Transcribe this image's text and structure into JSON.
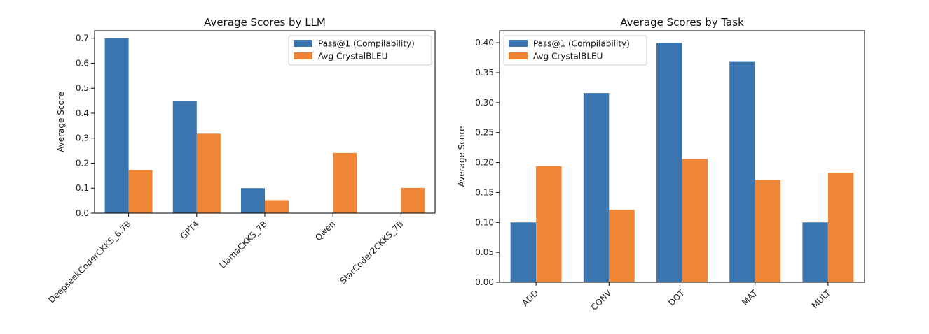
{
  "chart_data": [
    {
      "type": "bar",
      "title": "Average Scores by LLM",
      "xlabel": "",
      "ylabel": "Average Score",
      "categories": [
        "DeepseekCoderCKKS_6.7B",
        "GPT4",
        "LlamaCKKS_7B",
        "Qwen",
        "StarCoder2CKKS_7B"
      ],
      "series": [
        {
          "name": "Pass@1 (Compilability)",
          "color": "#3a75af",
          "values": [
            0.7,
            0.45,
            0.1,
            0.0,
            0.0
          ]
        },
        {
          "name": "Avg CrystalBLEU",
          "color": "#ef8636",
          "values": [
            0.172,
            0.318,
            0.052,
            0.241,
            0.101
          ]
        }
      ],
      "ylim": [
        0,
        0.73
      ],
      "yticks": [
        "0.0",
        "0.1",
        "0.2",
        "0.3",
        "0.4",
        "0.5",
        "0.6",
        "0.7"
      ],
      "legend": "upper right",
      "grid": false
    },
    {
      "type": "bar",
      "title": "Average Scores by Task",
      "xlabel": "",
      "ylabel": "Average Score",
      "categories": [
        "ADD",
        "CONV",
        "DOT",
        "MAT",
        "MULT"
      ],
      "series": [
        {
          "name": "Pass@1 (Compilability)",
          "color": "#3a75af",
          "values": [
            0.1,
            0.316,
            0.4,
            0.368,
            0.1
          ]
        },
        {
          "name": "Avg CrystalBLEU",
          "color": "#ef8636",
          "values": [
            0.194,
            0.121,
            0.206,
            0.171,
            0.183
          ]
        }
      ],
      "ylim": [
        0,
        0.42
      ],
      "yticks": [
        "0.00",
        "0.05",
        "0.10",
        "0.15",
        "0.20",
        "0.25",
        "0.30",
        "0.35",
        "0.40"
      ],
      "legend": "upper left",
      "grid": false
    }
  ]
}
